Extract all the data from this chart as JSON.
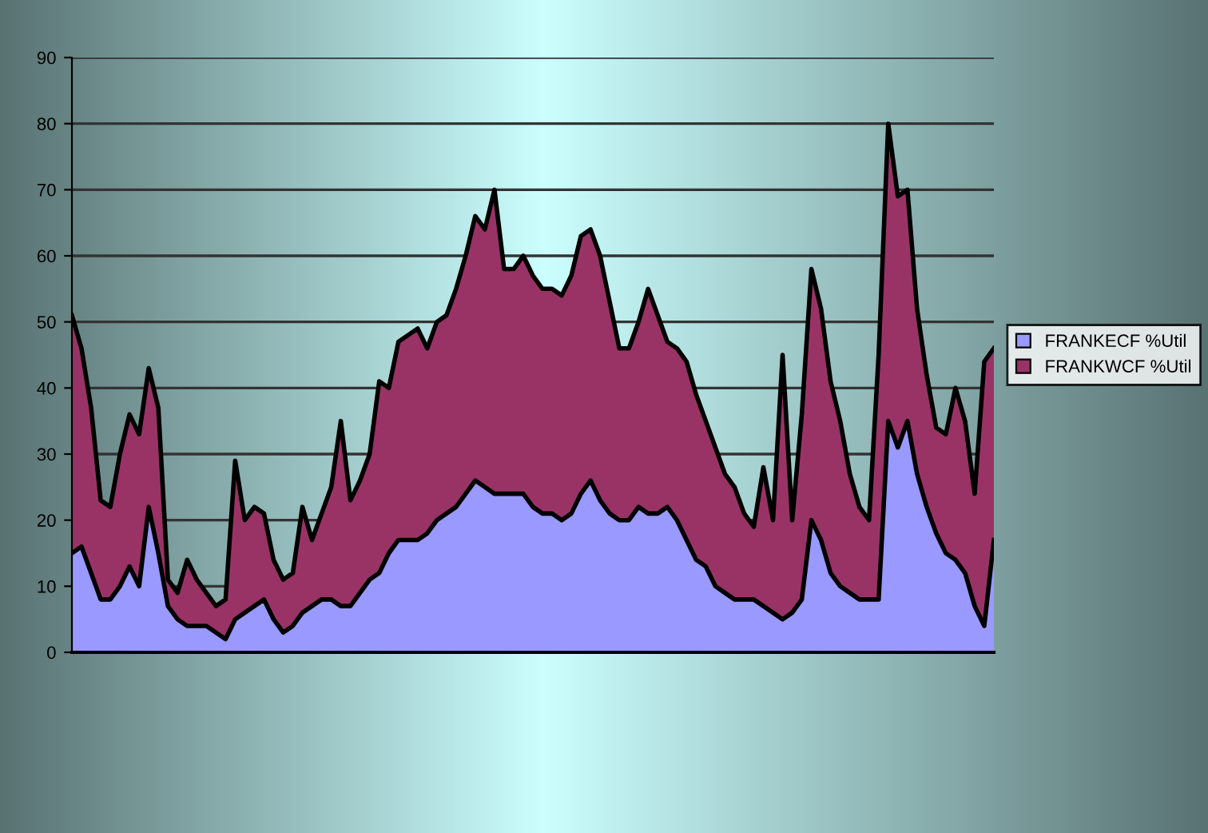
{
  "chart_data": {
    "type": "area",
    "categories": [
      null,
      null,
      null,
      null,
      null,
      null,
      null,
      null,
      null,
      null,
      null,
      null,
      null,
      null,
      null,
      null,
      null,
      null,
      null,
      null,
      null,
      null,
      null,
      null,
      null,
      null,
      null,
      null,
      null,
      null,
      null,
      null,
      null,
      null,
      null,
      null,
      null,
      null,
      null,
      null,
      null,
      null,
      null,
      null,
      null,
      null,
      null,
      null,
      null,
      null,
      null,
      null,
      null,
      null,
      null,
      null,
      null,
      null,
      null,
      null,
      null,
      null,
      null,
      null,
      null,
      null,
      null,
      null,
      null,
      null,
      null,
      null,
      null,
      null,
      null,
      null,
      null,
      null,
      null,
      null,
      null,
      null,
      null,
      null,
      null,
      null,
      null,
      null,
      null,
      null,
      null,
      null,
      null,
      null,
      null,
      null,
      null
    ],
    "series": [
      {
        "name": "FRANKWCF %Util",
        "color": "#993366",
        "values": [
          51,
          46,
          37,
          23,
          22,
          30,
          36,
          33,
          43,
          37,
          11,
          9,
          14,
          11,
          9,
          7,
          8,
          29,
          20,
          22,
          21,
          14,
          11,
          12,
          22,
          17,
          21,
          25,
          35,
          23,
          26,
          30,
          41,
          40,
          47,
          48,
          49,
          46,
          50,
          51,
          55,
          60,
          66,
          64,
          70,
          58,
          58,
          60,
          57,
          55,
          55,
          54,
          57,
          63,
          64,
          60,
          53,
          46,
          46,
          50,
          55,
          51,
          47,
          46,
          44,
          39,
          35,
          31,
          27,
          25,
          21,
          19,
          28,
          20,
          45,
          20,
          36,
          58,
          52,
          41,
          35,
          27,
          22,
          20,
          45,
          80,
          69,
          70,
          52,
          42,
          34,
          33,
          40,
          35,
          24,
          44,
          46
        ]
      },
      {
        "name": "FRANKECF %Util",
        "color": "#9999ff",
        "values": [
          15,
          16,
          12,
          8,
          8,
          10,
          13,
          10,
          22,
          15,
          7,
          5,
          4,
          4,
          4,
          3,
          2,
          5,
          6,
          7,
          8,
          5,
          3,
          4,
          6,
          7,
          8,
          8,
          7,
          7,
          9,
          11,
          12,
          15,
          17,
          17,
          17,
          18,
          20,
          21,
          22,
          24,
          26,
          25,
          24,
          24,
          24,
          24,
          22,
          21,
          21,
          20,
          21,
          24,
          26,
          23,
          21,
          20,
          20,
          22,
          21,
          21,
          22,
          20,
          17,
          14,
          13,
          10,
          9,
          8,
          8,
          8,
          7,
          6,
          5,
          6,
          8,
          20,
          17,
          12,
          10,
          9,
          8,
          8,
          8,
          35,
          31,
          35,
          27,
          22,
          18,
          15,
          14,
          12,
          7,
          4,
          17
        ]
      }
    ],
    "ylim": [
      0,
      90
    ],
    "yticks": [
      0,
      10,
      20,
      30,
      40,
      50,
      60,
      70,
      80,
      90
    ],
    "grid": "y",
    "legend": "right",
    "tick_labels": "y"
  }
}
